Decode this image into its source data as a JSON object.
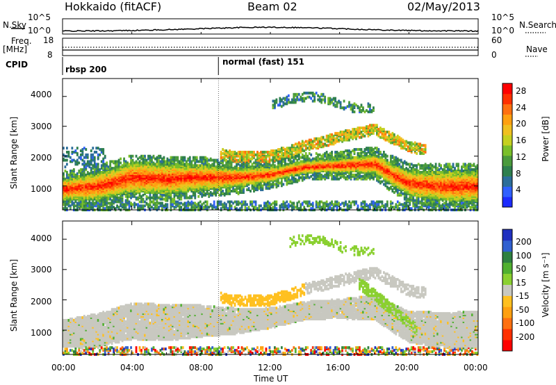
{
  "header": {
    "station": "Hokkaido (fitACF)",
    "beam": "Beam 02",
    "date": "02/May/2013"
  },
  "top_panel": {
    "left_label": "N.Sky",
    "left_ticks": [
      "10^5",
      "10^0"
    ],
    "right_label": "N.Search",
    "right_ticks": [
      "10^5",
      "10^0"
    ]
  },
  "freq_panel": {
    "left_label_1": "Freq.",
    "left_label_2": "[MHz]",
    "left_ticks": [
      "18",
      "8"
    ],
    "right_label": "Nave",
    "right_ticks": [
      "60",
      "0"
    ]
  },
  "cpid_panel": {
    "label": "CPID",
    "segments": [
      {
        "name": "rbsp 200",
        "start_hour": 0
      },
      {
        "name": "normal (fast) 151",
        "start_hour": 9
      }
    ]
  },
  "chart_data": [
    {
      "type": "heatmap",
      "name": "power-panel",
      "ylabel": "Slant Range [km]",
      "xlabel": "Time UT",
      "x_ticks": [
        "00:00",
        "04:00",
        "08:00",
        "12:00",
        "16:00",
        "20:00",
        "00:00"
      ],
      "xlim_hours": [
        0,
        24
      ],
      "y_ticks": [
        1000,
        2000,
        3000,
        4000
      ],
      "ylim": [
        200,
        4600
      ],
      "colorbar": {
        "label": "Power [dB]",
        "ticks": [
          4,
          8,
          12,
          16,
          20,
          24,
          28
        ],
        "range": [
          0,
          30
        ],
        "colors": [
          "#1c2bff",
          "#3060ff",
          "#2c6e9a",
          "#2e7f4e",
          "#4a9a3c",
          "#7abf2a",
          "#c5d020",
          "#f0c020",
          "#ffa010",
          "#ff7010",
          "#ff3000",
          "#ff0000"
        ]
      },
      "features": [
        {
          "desc": "main band",
          "points": [
            [
              0,
              900
            ],
            [
              2,
              1000
            ],
            [
              4,
              1300
            ],
            [
              6,
              1250
            ],
            [
              8,
              1300
            ],
            [
              10,
              1300
            ],
            [
              12,
              1400
            ],
            [
              14,
              1650
            ],
            [
              16,
              1700
            ],
            [
              18,
              1750
            ],
            [
              19,
              1400
            ],
            [
              20,
              1100
            ],
            [
              22,
              1000
            ],
            [
              24,
              1000
            ]
          ],
          "power_db": 28
        }
      ]
    },
    {
      "type": "heatmap",
      "name": "velocity-panel",
      "ylabel": "Slant Range [km]",
      "xlabel": "Time UT",
      "x_ticks": [
        "00:00",
        "04:00",
        "08:00",
        "12:00",
        "16:00",
        "20:00",
        "00:00"
      ],
      "xlim_hours": [
        0,
        24
      ],
      "y_ticks": [
        1000,
        2000,
        3000,
        4000
      ],
      "ylim": [
        200,
        4600
      ],
      "colorbar": {
        "label": "Velocity [m s⁻¹]",
        "ticks": [
          200,
          100,
          50,
          15,
          -15,
          -50,
          -100,
          -200
        ],
        "colors": [
          "#2030c0",
          "#3060d0",
          "#2e8040",
          "#50b030",
          "#8ad030",
          "#c8c8c0",
          "#ffc020",
          "#ffa010",
          "#ff7010",
          "#ff3000",
          "#ff0000"
        ]
      }
    }
  ],
  "xaxis": {
    "label": "Time UT",
    "ticks": [
      "00:00",
      "04:00",
      "08:00",
      "12:00",
      "16:00",
      "20:00",
      "00:00"
    ]
  }
}
